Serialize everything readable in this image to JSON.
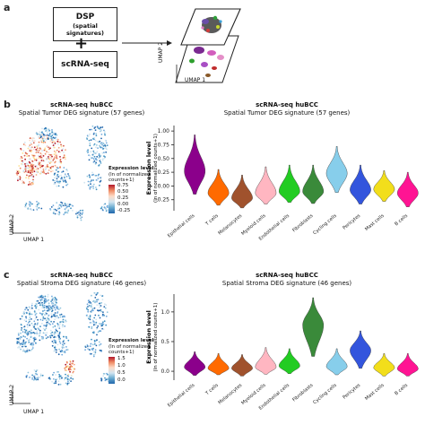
{
  "panel_a": {
    "letter": "a",
    "dsp_title": "DSP",
    "dsp_subtitle": "(spatial signatures)",
    "plus": "+",
    "scrna_label": "scRNA-seq",
    "umap1": "UMAP 1",
    "umap2": "UMAP 2"
  },
  "panel_b": {
    "letter": "b",
    "umap_title": "scRNA-seq huBCC",
    "umap_subtitle": "Spatial Tumor DEG signature (57 genes)",
    "umap_x": "UMAP 1",
    "umap_y": "UMAP 2",
    "colorbar_title": "Expression level",
    "colorbar_subtitle": "(ln of normalized",
    "colorbar_subtitle2": "counts+1)",
    "colorbar_ticks": [
      "0.75",
      "0.50",
      "0.25",
      "0.00",
      "-0.25"
    ],
    "violin_title": "scRNA-seq huBCC",
    "violin_subtitle": "Spatial Tumor DEG signature (57 genes)"
  },
  "panel_c": {
    "letter": "c",
    "umap_title": "scRNA-seq huBCC",
    "umap_subtitle": "Spatial Stroma DEG signature (46 genes)",
    "umap_x": "UMAP 1",
    "umap_y": "UMAP 2",
    "colorbar_title": "Expression level",
    "colorbar_subtitle": "(ln of normalized",
    "colorbar_subtitle2": "counts+1)",
    "colorbar_ticks": [
      "1.5",
      "1.0",
      "0.5",
      "0.0"
    ],
    "violin_title": "scRNA-seq huBCC",
    "violin_subtitle": "Spatial Stroma DEG signature (46 genes)"
  },
  "chart_data": [
    {
      "type": "violin",
      "title": "scRNA-seq huBCC",
      "subtitle": "Spatial Tumor DEG signature (57 genes)",
      "ylabel": "Expression level",
      "ylabel2": "(ln of normalized counts+1)",
      "ylim": [
        -0.45,
        1.1
      ],
      "yticks": [
        "1.00",
        "0.75",
        "0.50",
        "0.25",
        "0.00",
        "-0.25"
      ],
      "ytick_values": [
        1.0,
        0.75,
        0.5,
        0.25,
        0.0,
        -0.25
      ],
      "categories": [
        "Epithelial cells",
        "T cells",
        "Melanocytes",
        "Myeloid cells",
        "Endothelial cells",
        "Fibroblasts",
        "Cycling cells",
        "Pericytes",
        "Mast cells",
        "B cells"
      ],
      "colors": [
        "#8b008b",
        "#ff6a00",
        "#a0522d",
        "#ffb6c1",
        "#22cc22",
        "#3a8a3a",
        "#87ceeb",
        "#3355dd",
        "#f2de1b",
        "#ff1493"
      ],
      "medians": [
        0.27,
        -0.13,
        -0.22,
        -0.13,
        -0.1,
        -0.1,
        0.23,
        -0.07,
        -0.06,
        -0.13
      ],
      "mins": [
        -0.15,
        -0.35,
        -0.4,
        -0.33,
        -0.3,
        -0.32,
        -0.12,
        -0.33,
        -0.28,
        -0.38
      ],
      "maxs": [
        0.93,
        0.3,
        0.2,
        0.35,
        0.38,
        0.38,
        0.72,
        0.38,
        0.28,
        0.25
      ]
    },
    {
      "type": "violin",
      "title": "scRNA-seq huBCC",
      "subtitle": "Spatial Stroma DEG signature (46 genes)",
      "ylabel": "Expression level",
      "ylabel2": "(ln of normalized counts+1)",
      "ylim": [
        -0.15,
        1.3
      ],
      "yticks": [
        "1.0",
        "0.5",
        "0.0"
      ],
      "ytick_values": [
        1.0,
        0.5,
        0.0
      ],
      "categories": [
        "Epithelial cells",
        "T cells",
        "Melanocytes",
        "Myeloid cells",
        "Endothelial cells",
        "Fibroblasts",
        "Cycling cells",
        "Pericytes",
        "Mast cells",
        "B cells"
      ],
      "colors": [
        "#8b008b",
        "#ff6a00",
        "#a0522d",
        "#ffb6c1",
        "#22cc22",
        "#3a8a3a",
        "#87ceeb",
        "#3355dd",
        "#f2de1b",
        "#ff1493"
      ],
      "medians": [
        0.07,
        0.05,
        0.05,
        0.07,
        0.09,
        0.78,
        0.08,
        0.35,
        0.06,
        0.04
      ],
      "mins": [
        -0.07,
        -0.06,
        -0.08,
        -0.05,
        -0.04,
        0.25,
        -0.06,
        0.05,
        -0.08,
        -0.08
      ],
      "maxs": [
        0.33,
        0.3,
        0.28,
        0.4,
        0.38,
        1.24,
        0.38,
        0.68,
        0.3,
        0.3
      ]
    }
  ]
}
